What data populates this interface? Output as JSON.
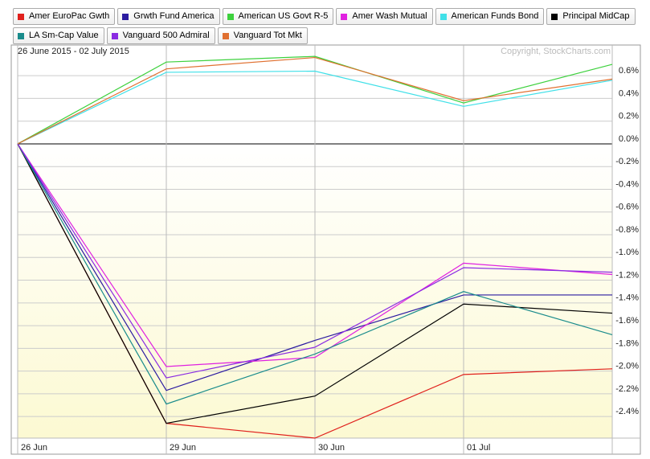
{
  "chart_data": {
    "type": "line",
    "subtitle": "26 June 2015 - 02 July 2015",
    "copyright": "Copyright, StockCharts.com",
    "categories": [
      "26 Jun",
      "29 Jun",
      "30 Jun",
      "01 Jul",
      null
    ],
    "series": [
      {
        "name": "Amer EuroPac Gwth",
        "color": "#e0201c",
        "values": [
          0,
          -2.46,
          -2.59,
          -2.03,
          -1.98
        ]
      },
      {
        "name": "Grwth Fund America",
        "color": "#2b1ba0",
        "values": [
          0,
          -2.17,
          -1.73,
          -1.33,
          -1.33
        ]
      },
      {
        "name": "American US Govt R-5",
        "color": "#3dd13d",
        "values": [
          0,
          0.72,
          0.77,
          0.36,
          0.7
        ]
      },
      {
        "name": "Amer Wash Mutual",
        "color": "#e020e0",
        "values": [
          0,
          -1.96,
          -1.88,
          -1.05,
          -1.15
        ]
      },
      {
        "name": "American Funds Bond",
        "color": "#40e0e8",
        "values": [
          0,
          0.63,
          0.64,
          0.33,
          0.56
        ]
      },
      {
        "name": "Principal MidCap",
        "color": "#000000",
        "values": [
          0,
          -2.46,
          -2.22,
          -1.41,
          -1.49
        ]
      },
      {
        "name": "LA Sm-Cap Value",
        "color": "#1a8c8c",
        "values": [
          0,
          -2.29,
          -1.85,
          -1.3,
          -1.68
        ]
      },
      {
        "name": "Vanguard 500 Admiral",
        "color": "#8a2be2",
        "values": [
          0,
          -2.06,
          -1.79,
          -1.09,
          -1.13
        ]
      },
      {
        "name": "Vanguard Tot Mkt",
        "color": "#e07030",
        "values": [
          0,
          0.66,
          0.76,
          0.38,
          0.57
        ]
      }
    ],
    "ylim": [
      -2.59,
      0.87
    ],
    "yticks": [
      {
        "value": 0.6,
        "label": "0.6%"
      },
      {
        "value": 0.4,
        "label": "0.4%"
      },
      {
        "value": 0.2,
        "label": "0.2%"
      },
      {
        "value": 0.0,
        "label": "0.0%"
      },
      {
        "value": -0.2,
        "label": "-0.2%"
      },
      {
        "value": -0.4,
        "label": "-0.4%"
      },
      {
        "value": -0.6,
        "label": "-0.6%"
      },
      {
        "value": -0.8,
        "label": "-0.8%"
      },
      {
        "value": -1.0,
        "label": "-1.0%"
      },
      {
        "value": -1.2,
        "label": "-1.2%"
      },
      {
        "value": -1.4,
        "label": "-1.4%"
      },
      {
        "value": -1.6,
        "label": "-1.6%"
      },
      {
        "value": -1.8,
        "label": "-1.8%"
      },
      {
        "value": -2.0,
        "label": "-2.0%"
      },
      {
        "value": -2.2,
        "label": "-2.2%"
      },
      {
        "value": -2.4,
        "label": "-2.4%"
      }
    ],
    "grid": true
  }
}
